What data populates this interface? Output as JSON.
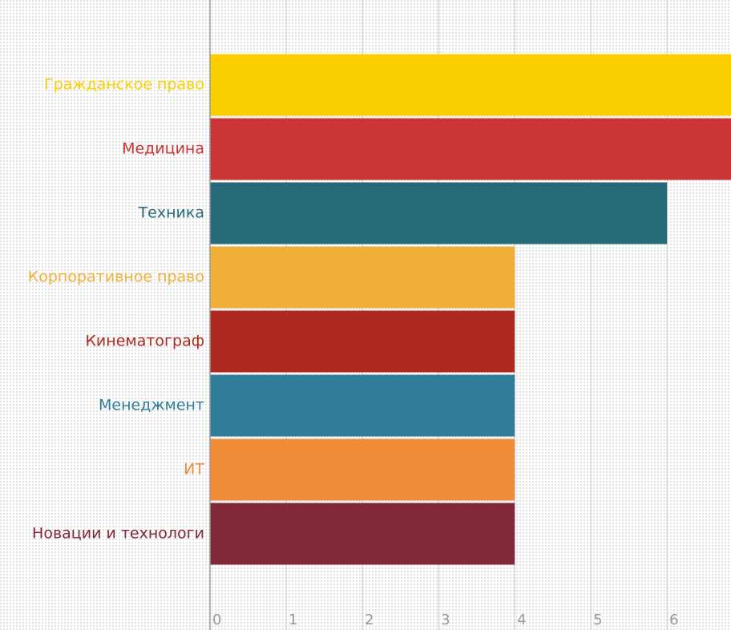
{
  "chart_data": {
    "type": "barh",
    "categories": [
      "Гражданское право",
      "Медицина",
      "Техника",
      "Корпоративное право",
      "Кинематограф",
      "Менеджмент",
      "ИТ",
      "Новации и технологи"
    ],
    "values": [
      7,
      7,
      6,
      4,
      4,
      4,
      4,
      4
    ],
    "colors": [
      "#fcd000",
      "#cc3535",
      "#266a7a",
      "#f0b03a",
      "#ae2a20",
      "#2f7d9a",
      "#f08b38",
      "#80283a"
    ],
    "xlim": [
      0,
      6.84
    ],
    "xticks": [
      0,
      1,
      2,
      3,
      4,
      5,
      6
    ],
    "grid": true
  }
}
